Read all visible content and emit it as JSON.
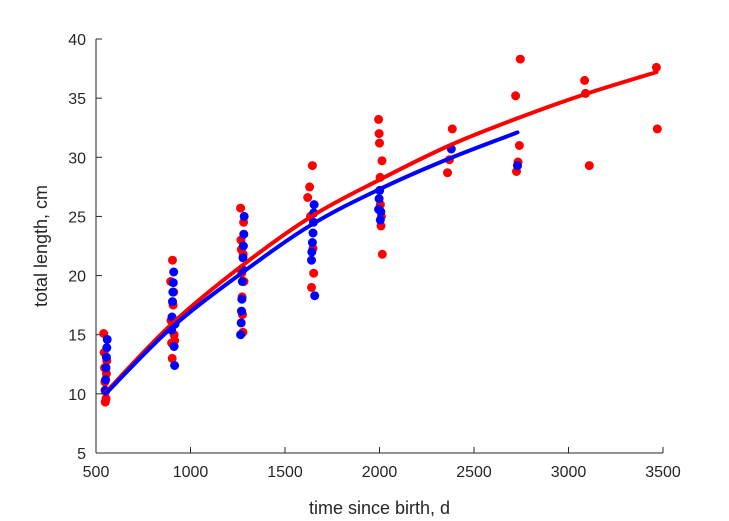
{
  "chart_data": {
    "type": "scatter",
    "title": "",
    "xlabel": "time since birth, d",
    "ylabel": "total length, cm",
    "xlim": [
      500,
      3500
    ],
    "ylim": [
      5,
      40
    ],
    "xticks": [
      500,
      1000,
      1500,
      2000,
      2500,
      3000,
      3500
    ],
    "yticks": [
      5,
      10,
      15,
      20,
      25,
      30,
      35,
      40
    ],
    "grid": false,
    "series": [
      {
        "name": "red data",
        "color": "#ff0000",
        "points": [
          [
            541,
            15.1
          ],
          [
            543,
            13.5
          ],
          [
            545,
            12.2
          ],
          [
            547,
            11.0
          ],
          [
            549,
            9.3
          ],
          [
            551,
            10.2
          ],
          [
            553,
            9.6
          ],
          [
            555,
            11.7
          ],
          [
            557,
            12.8
          ],
          [
            895,
            19.5
          ],
          [
            897,
            16.2
          ],
          [
            900,
            14.3
          ],
          [
            903,
            13.0
          ],
          [
            905,
            21.3
          ],
          [
            908,
            17.5
          ],
          [
            911,
            18.6
          ],
          [
            913,
            15.0
          ],
          [
            916,
            14.5
          ],
          [
            1265,
            25.7
          ],
          [
            1267,
            23.0
          ],
          [
            1269,
            22.2
          ],
          [
            1271,
            20.2
          ],
          [
            1273,
            18.2
          ],
          [
            1275,
            16.7
          ],
          [
            1277,
            15.2
          ],
          [
            1279,
            21.8
          ],
          [
            1281,
            24.5
          ],
          [
            1283,
            19.5
          ],
          [
            1620,
            26.6
          ],
          [
            1630,
            27.5
          ],
          [
            1635,
            25.0
          ],
          [
            1640,
            19.0
          ],
          [
            1645,
            29.3
          ],
          [
            1648,
            22.3
          ],
          [
            1652,
            20.2
          ],
          [
            1995,
            33.2
          ],
          [
            1998,
            32.0
          ],
          [
            2000,
            31.2
          ],
          [
            2003,
            28.3
          ],
          [
            2005,
            26.0
          ],
          [
            2008,
            24.2
          ],
          [
            2010,
            25.0
          ],
          [
            2013,
            29.7
          ],
          [
            2015,
            21.8
          ],
          [
            2360,
            28.7
          ],
          [
            2370,
            29.8
          ],
          [
            2385,
            32.4
          ],
          [
            2720,
            35.2
          ],
          [
            2725,
            28.8
          ],
          [
            2733,
            29.6
          ],
          [
            2740,
            31.0
          ],
          [
            2745,
            38.3
          ],
          [
            3085,
            36.5
          ],
          [
            3090,
            35.4
          ],
          [
            3110,
            29.3
          ],
          [
            3465,
            37.6
          ],
          [
            3470,
            32.4
          ]
        ]
      },
      {
        "name": "blue data",
        "color": "#0000ff",
        "points": [
          [
            548,
            10.3
          ],
          [
            551,
            11.2
          ],
          [
            553,
            12.2
          ],
          [
            555,
            13.1
          ],
          [
            557,
            13.9
          ],
          [
            559,
            14.6
          ],
          [
            900,
            15.4
          ],
          [
            902,
            16.5
          ],
          [
            905,
            17.8
          ],
          [
            907,
            18.6
          ],
          [
            909,
            19.4
          ],
          [
            911,
            20.3
          ],
          [
            913,
            14.0
          ],
          [
            916,
            12.4
          ],
          [
            918,
            15.9
          ],
          [
            1265,
            15.0
          ],
          [
            1268,
            16.0
          ],
          [
            1270,
            17.0
          ],
          [
            1272,
            18.0
          ],
          [
            1274,
            19.5
          ],
          [
            1276,
            20.5
          ],
          [
            1278,
            21.5
          ],
          [
            1280,
            22.5
          ],
          [
            1282,
            23.5
          ],
          [
            1284,
            25.0
          ],
          [
            1640,
            21.3
          ],
          [
            1642,
            22.0
          ],
          [
            1645,
            22.8
          ],
          [
            1648,
            23.6
          ],
          [
            1650,
            24.5
          ],
          [
            1652,
            25.3
          ],
          [
            1654,
            26.0
          ],
          [
            1657,
            18.3
          ],
          [
            1995,
            25.6
          ],
          [
            1998,
            26.5
          ],
          [
            2001,
            27.2
          ],
          [
            2004,
            24.7
          ],
          [
            2007,
            25.4
          ],
          [
            2380,
            30.7
          ],
          [
            2730,
            29.3
          ]
        ]
      }
    ],
    "fits": [
      {
        "name": "red fit",
        "color": "#ff0000",
        "points": [
          [
            550,
            10.1
          ],
          [
            900,
            15.9
          ],
          [
            1270,
            20.8
          ],
          [
            1640,
            25.0
          ],
          [
            2000,
            28.1
          ],
          [
            2370,
            31.0
          ],
          [
            2730,
            33.3
          ],
          [
            3100,
            35.4
          ],
          [
            3465,
            37.2
          ]
        ]
      },
      {
        "name": "blue fit",
        "color": "#0000ff",
        "points": [
          [
            550,
            10.0
          ],
          [
            900,
            15.6
          ],
          [
            1270,
            20.2
          ],
          [
            1640,
            24.3
          ],
          [
            2000,
            27.3
          ],
          [
            2370,
            29.9
          ],
          [
            2730,
            32.1
          ]
        ]
      }
    ]
  }
}
